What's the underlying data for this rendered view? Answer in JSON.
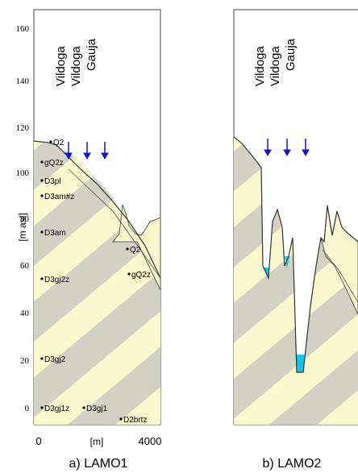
{
  "left_panel": {
    "caption": "a) LAMO1",
    "y_axis_label": "[m asl]",
    "y_ticks": [
      "160",
      "140",
      "120",
      "100",
      "80",
      "60",
      "40",
      "20",
      "0"
    ],
    "x_ticks": [
      "0",
      "[m]",
      "4000"
    ],
    "rivers": [
      "Vildoga",
      "Vildoga",
      "Gauja"
    ],
    "layers": [
      "Q2",
      "gQ2z",
      "D3pl",
      "D3am#z",
      "D3am",
      "D3gj2z",
      "D3gj2",
      "D3gj1z",
      "D3gj1",
      "D2brtz",
      "Q2",
      "gQ2z"
    ]
  },
  "right_panel": {
    "caption": "b) LAMO2",
    "rivers": [
      "Vildoga",
      "Vildoga",
      "Gauja"
    ]
  },
  "colors": {
    "band_gray": "#d3d0c4",
    "band_yellow": "#fbf8cf",
    "water": "#18c4e6",
    "arrow": "#1515c8",
    "outline": "#333333"
  }
}
